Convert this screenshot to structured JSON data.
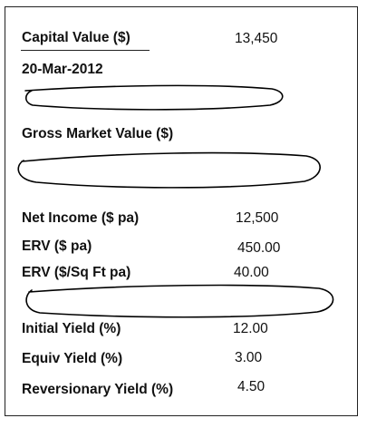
{
  "capital_value": {
    "label": "Capital Value ($)",
    "value": "13,450"
  },
  "date": "20-Mar-2012",
  "gross_market_value": {
    "label": "Gross Market Value ($)"
  },
  "net_income": {
    "label": "Net Income ($ pa)",
    "value": "12,500"
  },
  "erv_pa": {
    "label": "ERV ($ pa)",
    "value": "450.00"
  },
  "erv_sqft": {
    "label": "ERV ($/Sq Ft pa)",
    "value": "40.00"
  },
  "initial_yield": {
    "label": "Initial Yield (%)",
    "value": "12.00"
  },
  "equiv_yield": {
    "label": "Equiv Yield (%)",
    "value": "3.00"
  },
  "reversionary_yield": {
    "label": "Reversionary Yield (%)",
    "value": "4.50"
  },
  "colors": {
    "text": "#111111",
    "border": "#222222",
    "ink": "#000000"
  }
}
